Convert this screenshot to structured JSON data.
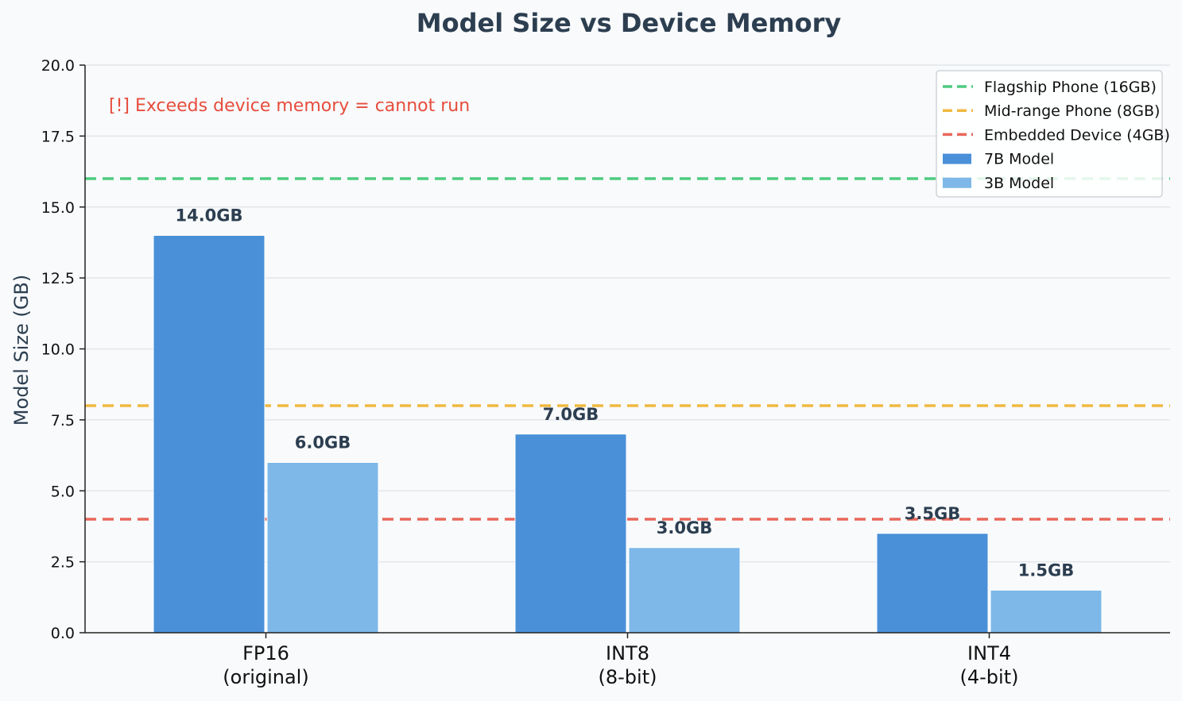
{
  "chart_data": {
    "type": "bar",
    "title": "Model Size vs Device Memory",
    "xlabel": "",
    "ylabel": "Model Size (GB)",
    "ylim": [
      0,
      20
    ],
    "yticks": [
      "0.0",
      "2.5",
      "5.0",
      "7.5",
      "10.0",
      "12.5",
      "15.0",
      "17.5",
      "20.0"
    ],
    "categories": [
      [
        "FP16",
        "(original)"
      ],
      [
        "INT8",
        "(8-bit)"
      ],
      [
        "INT4",
        "(4-bit)"
      ]
    ],
    "series": [
      {
        "name": "7B Model",
        "values": [
          14.0,
          7.0,
          3.5
        ],
        "labels": [
          "14.0GB",
          "7.0GB",
          "3.5GB"
        ],
        "color": "#4a90d9"
      },
      {
        "name": "3B Model",
        "values": [
          6.0,
          3.0,
          1.5
        ],
        "labels": [
          "6.0GB",
          "3.0GB",
          "1.5GB"
        ],
        "color": "#7db8e8"
      }
    ],
    "reference_lines": [
      {
        "name": "Flagship Phone (16GB)",
        "value": 16,
        "color": "#4ecb7f"
      },
      {
        "name": "Mid-range Phone (8GB)",
        "value": 8,
        "color": "#f0b940"
      },
      {
        "name": "Embedded Device (4GB)",
        "value": 4,
        "color": "#e8685a"
      }
    ],
    "annotation": {
      "text": "[!] Exceeds device memory = cannot run",
      "color": "#e74c3c"
    },
    "grid": "horizontal",
    "legend_position": "top-right"
  }
}
